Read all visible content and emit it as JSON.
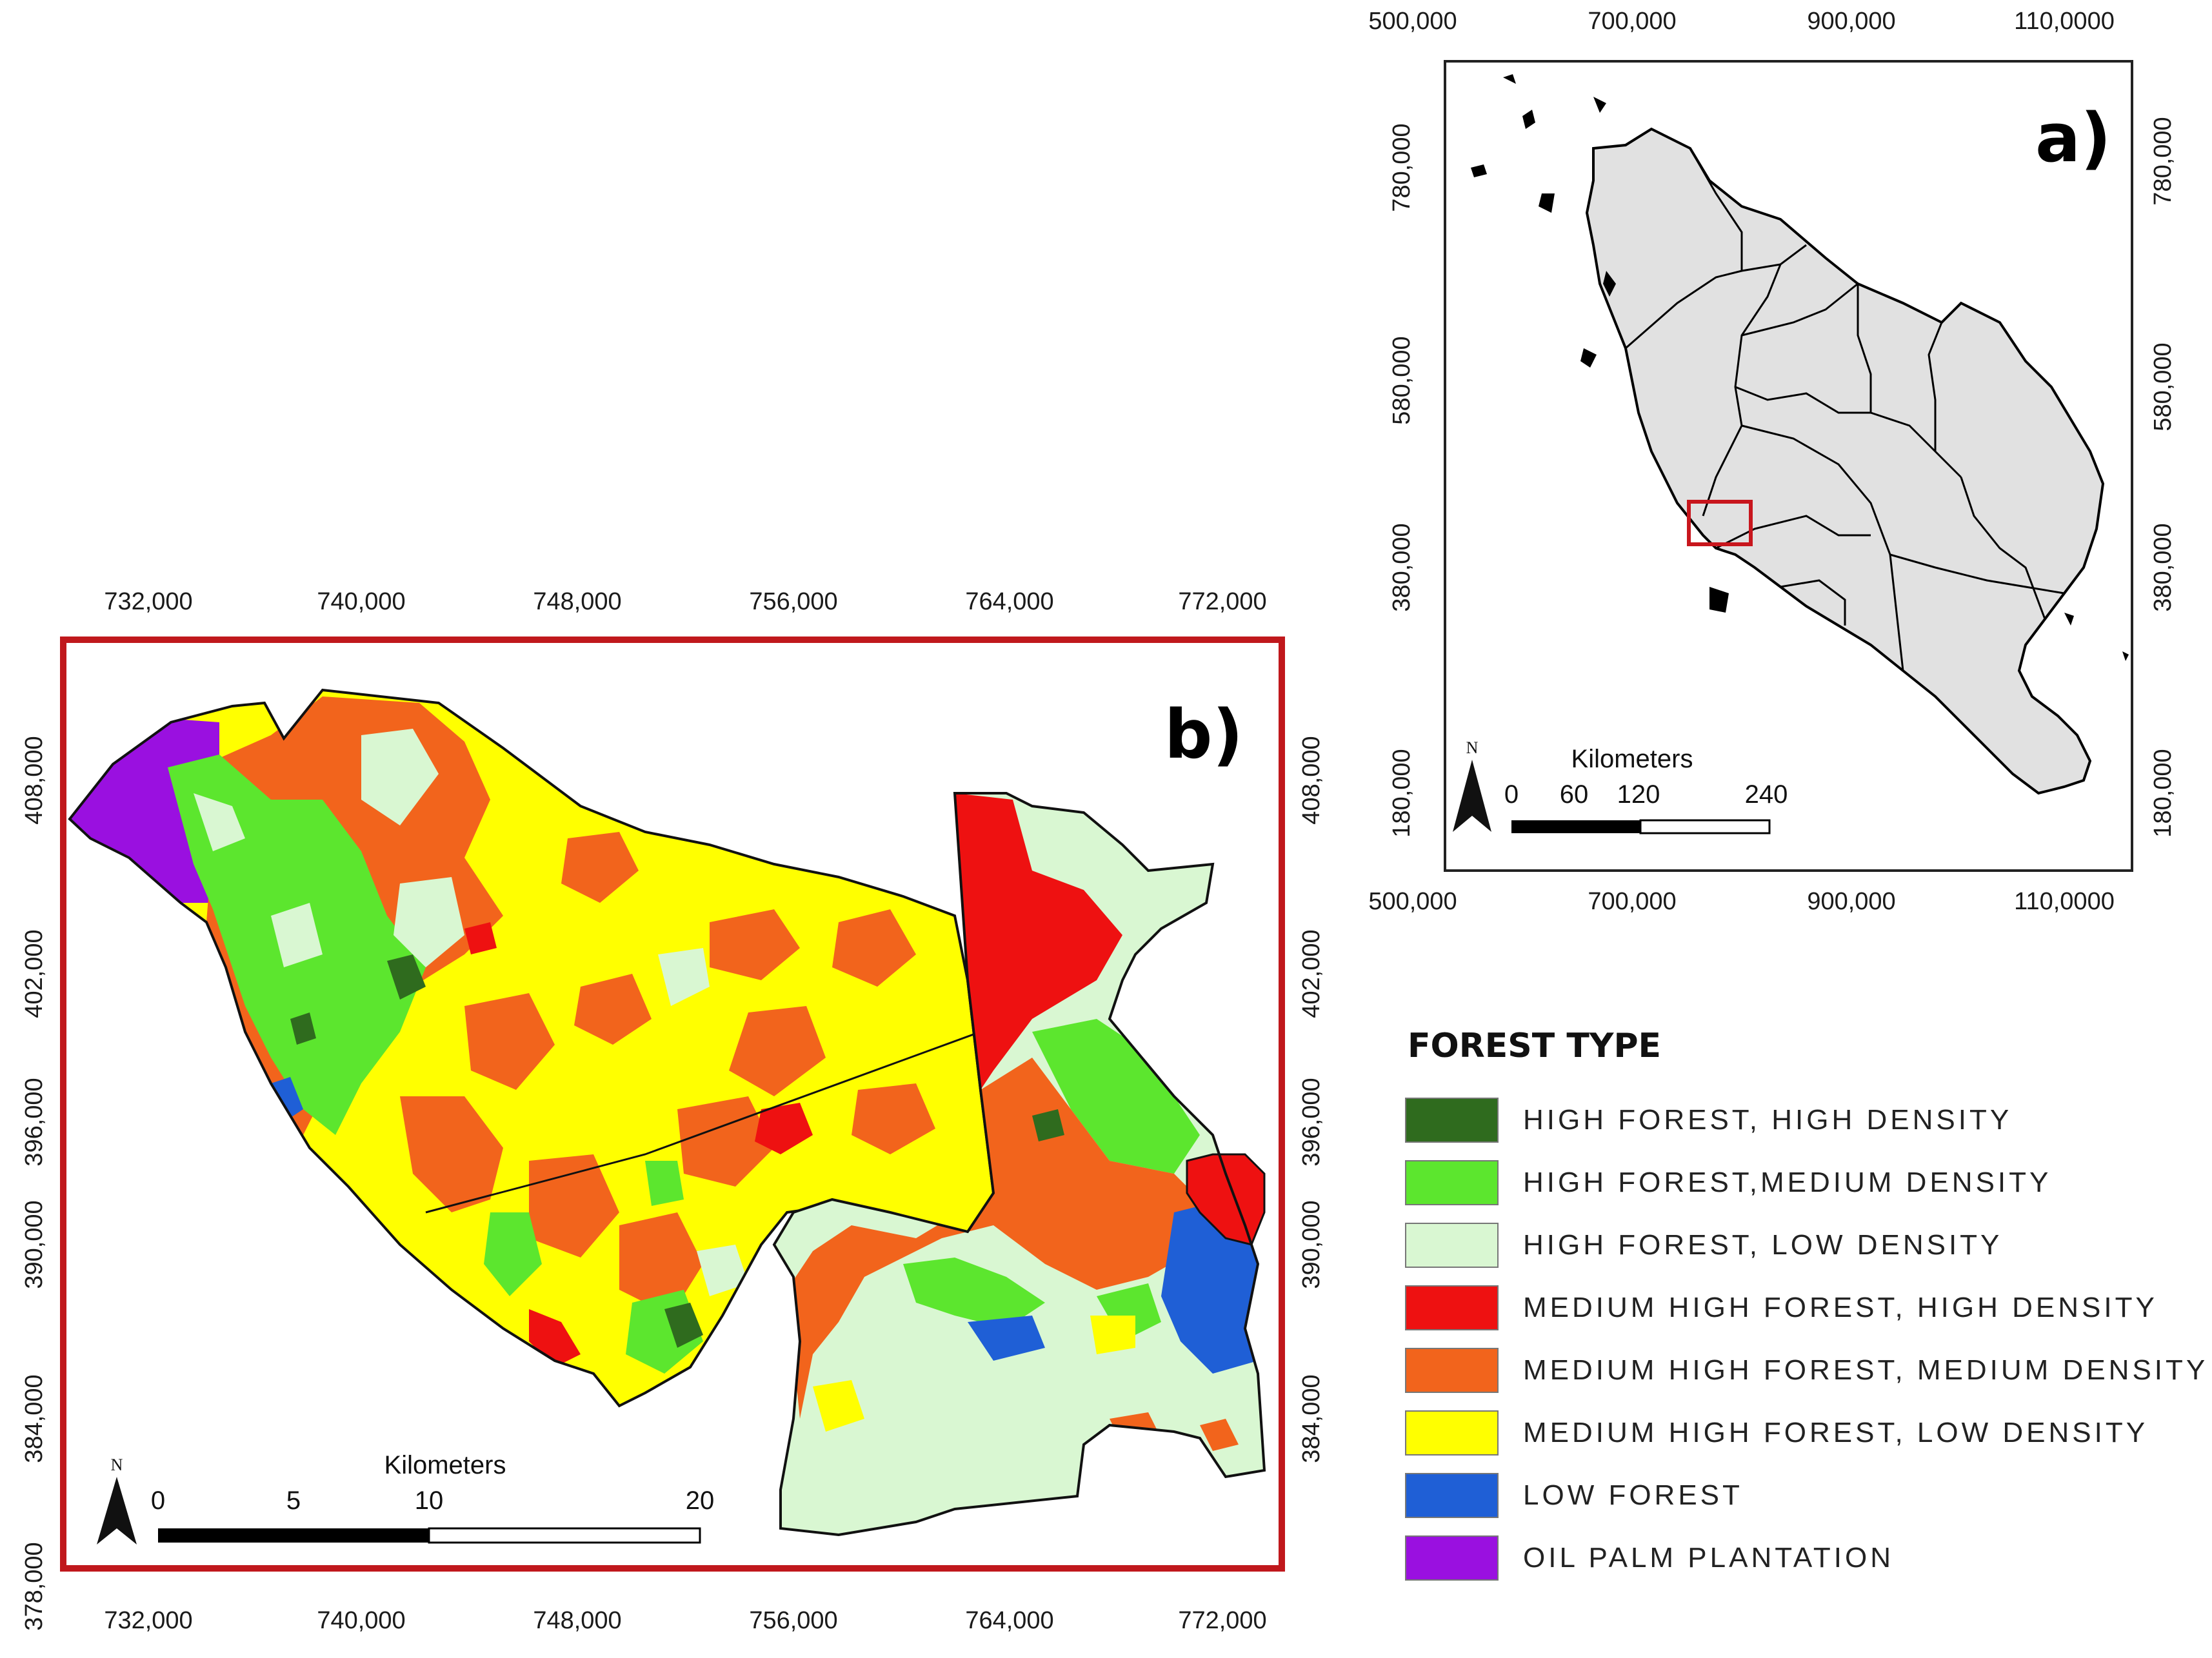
{
  "panel_a": {
    "letter": "a)",
    "x_ticks": [
      "500,000",
      "700,000",
      "900,000",
      "110,0000"
    ],
    "y_ticks": [
      "780,000",
      "580,000",
      "380,000",
      "180,000"
    ],
    "scale_bar": {
      "title": "Kilometers",
      "labels": [
        "0",
        "60",
        "120",
        "240"
      ]
    },
    "north_label": "N",
    "colors": {
      "land": "#e1e1e1",
      "outline": "#000000",
      "study_area_box": "#c8161d"
    }
  },
  "panel_b": {
    "letter": "b)",
    "x_ticks": [
      "732,000",
      "740,000",
      "748,000",
      "756,000",
      "764,000",
      "772,000"
    ],
    "y_ticks": [
      "408,000",
      "402,000",
      "396,000",
      "390,000",
      "384,000",
      "378,000"
    ],
    "scale_bar": {
      "title": "Kilometers",
      "labels": [
        "0",
        "5",
        "10",
        "20"
      ]
    },
    "north_label": "N",
    "frame_color": "#c0181c"
  },
  "legend": {
    "title": "FOREST TYPE",
    "items": [
      {
        "label": "HIGH FOREST, HIGH DENSITY",
        "color": "#2f6b1e"
      },
      {
        "label": "HIGH FOREST,MEDIUM DENSITY",
        "color": "#5ce62e"
      },
      {
        "label": "HIGH FOREST, LOW DENSITY",
        "color": "#d9f7d2"
      },
      {
        "label": "MEDIUM HIGH FOREST, HIGH DENSITY",
        "color": "#ee1111"
      },
      {
        "label": "MEDIUM HIGH FOREST, MEDIUM DENSITY",
        "color": "#f2641c"
      },
      {
        "label": "MEDIUM HIGH FOREST, LOW DENSITY",
        "color": "#ffff00"
      },
      {
        "label": "LOW FOREST",
        "color": "#1f5fd6"
      },
      {
        "label": "OIL PALM PLANTATION",
        "color": "#9a10e0"
      }
    ]
  }
}
